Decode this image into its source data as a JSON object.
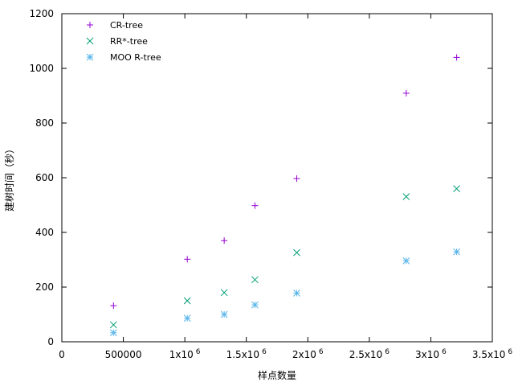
{
  "chart_data": {
    "type": "scatter",
    "xlabel": "样点数量",
    "ylabel": "建树时间（秒）",
    "xlim": [
      0,
      3500000
    ],
    "ylim": [
      0,
      1200
    ],
    "grid": false,
    "legend_position": "top-left",
    "x_ticks": [
      {
        "value": 0,
        "label": "0",
        "exp": ""
      },
      {
        "value": 500000,
        "label": "500000",
        "exp": ""
      },
      {
        "value": 1000000,
        "label": "1x10",
        "exp": "6"
      },
      {
        "value": 1500000,
        "label": "1.5x10",
        "exp": "6"
      },
      {
        "value": 2000000,
        "label": "2x10",
        "exp": "6"
      },
      {
        "value": 2500000,
        "label": "2.5x10",
        "exp": "6"
      },
      {
        "value": 3000000,
        "label": "3x10",
        "exp": "6"
      },
      {
        "value": 3500000,
        "label": "3.5x10",
        "exp": "6"
      }
    ],
    "y_ticks": [
      {
        "value": 0,
        "label": "0"
      },
      {
        "value": 200,
        "label": "200"
      },
      {
        "value": 400,
        "label": "400"
      },
      {
        "value": 600,
        "label": "600"
      },
      {
        "value": 800,
        "label": "800"
      },
      {
        "value": 1000,
        "label": "1000"
      },
      {
        "value": 1200,
        "label": "1200"
      }
    ],
    "series": [
      {
        "name": "CR-tree",
        "marker": "plus",
        "color": "#9400d3",
        "x": [
          420000,
          1020000,
          1320000,
          1570000,
          1910000,
          2800000,
          3210000
        ],
        "y": [
          132,
          302,
          370,
          498,
          597,
          909,
          1040
        ]
      },
      {
        "name": "RR*-tree",
        "marker": "cross",
        "color": "#009e73",
        "x": [
          420000,
          1020000,
          1320000,
          1570000,
          1910000,
          2800000,
          3210000
        ],
        "y": [
          62,
          150,
          180,
          227,
          326,
          531,
          560
        ]
      },
      {
        "name": "MOO R-tree",
        "marker": "star",
        "color": "#56b4e9",
        "x": [
          420000,
          1020000,
          1320000,
          1570000,
          1910000,
          2800000,
          3210000
        ],
        "y": [
          33,
          86,
          100,
          135,
          178,
          296,
          329
        ]
      }
    ]
  }
}
